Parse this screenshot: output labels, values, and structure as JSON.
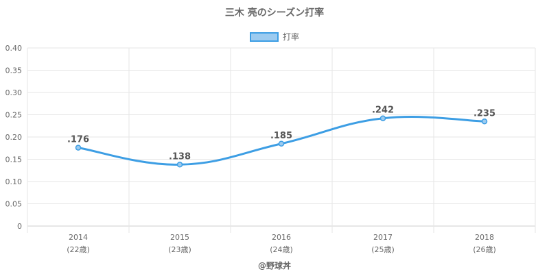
{
  "chart_data": {
    "type": "line",
    "title": "三木 亮のシーズン打率",
    "categories": [
      "2014",
      "2015",
      "2016",
      "2017",
      "2018"
    ],
    "ages": [
      "(22歳)",
      "(23歳)",
      "(24歳)",
      "(25歳)",
      "(26歳)"
    ],
    "series": [
      {
        "name": "打率",
        "values": [
          0.176,
          0.138,
          0.185,
          0.242,
          0.235
        ],
        "labels": [
          ".176",
          ".138",
          ".185",
          ".242",
          ".235"
        ],
        "color": "#3d9ee4",
        "fill": "#9ccbf0"
      }
    ],
    "ylim": [
      0,
      0.4
    ],
    "yticks": [
      "0",
      "0.05",
      "0.10",
      "0.15",
      "0.20",
      "0.25",
      "0.30",
      "0.35",
      "0.40"
    ],
    "grid": true,
    "legend_position": "top-center"
  },
  "footer": "@野球丼"
}
